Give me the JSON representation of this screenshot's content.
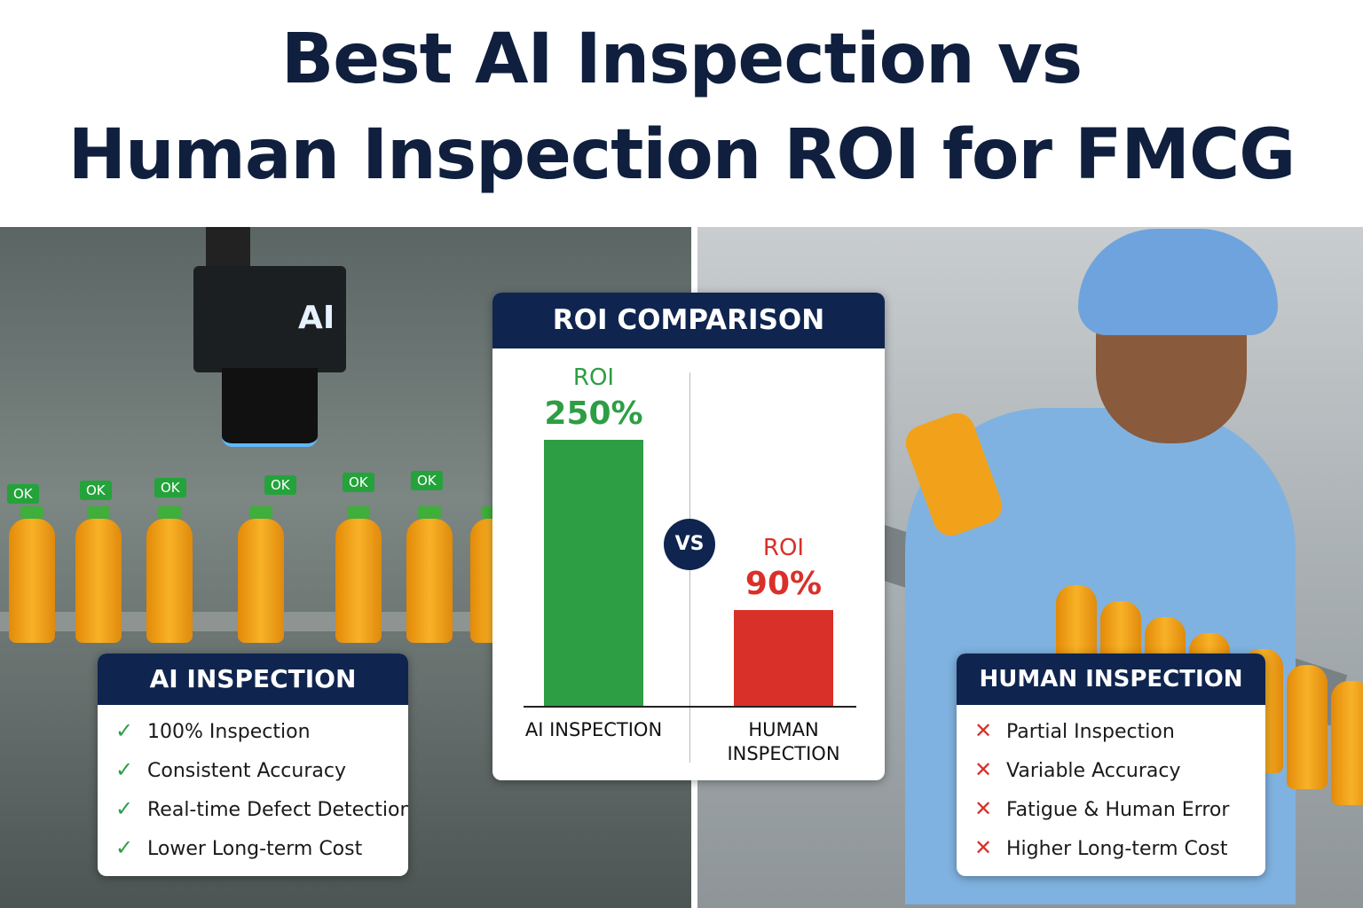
{
  "header": {
    "title_line_1": "Best AI Inspection vs",
    "title_line_2": "Human Inspection ROI for FMCG"
  },
  "camera_label": "AI",
  "ok_tags": [
    "OK",
    "OK",
    "OK",
    "OK",
    "OK",
    "OK"
  ],
  "chart_data": {
    "type": "bar",
    "title": "ROI COMPARISON",
    "categories": [
      "AI INSPECTION",
      "HUMAN INSPECTION"
    ],
    "values": [
      250,
      90
    ],
    "value_labels": [
      "250%",
      "90%"
    ],
    "bar_captions": [
      "ROI",
      "ROI"
    ],
    "colors": [
      "#2e9e44",
      "#d9302a"
    ],
    "versus": "VS"
  },
  "left_panel": {
    "title": "AI INSPECTION",
    "items": [
      "100% Inspection",
      "Consistent Accuracy",
      "Real-time Defect Detection",
      "Lower Long-term Cost"
    ]
  },
  "right_panel": {
    "title": "HUMAN INSPECTION",
    "items": [
      "Partial Inspection",
      "Variable Accuracy",
      "Fatigue & Human Error",
      "Higher Long-term Cost"
    ]
  }
}
